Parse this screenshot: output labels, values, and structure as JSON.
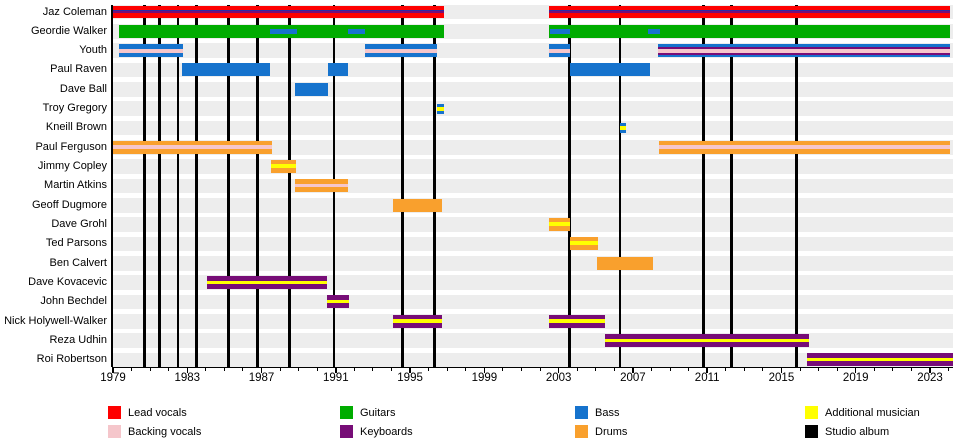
{
  "chart_data": {
    "type": "timeline",
    "description": "Band membership timeline with studio album markers",
    "x_axis": {
      "start": 1979,
      "end": 2024,
      "minor_tick_interval": 1,
      "major_labels": [
        "1979",
        "1983",
        "1987",
        "1991",
        "1995",
        "1999",
        "2003",
        "2007",
        "2011",
        "2015",
        "2019",
        "2023"
      ]
    },
    "colors": {
      "lead_vocals": "#fe0000",
      "backing_vocals": "#f5c6cb",
      "guitars": "#00ac00",
      "keyboards": "#770d77",
      "bass": "#1673cd",
      "drums": "#f9a02d",
      "additional_musician": "#ffff00",
      "studio_album": "#000000",
      "stripe_navy": "#2a2aa8"
    },
    "album_release_years": [
      1980.7,
      1981.5,
      1982.5,
      1983.5,
      1985.2,
      1986.8,
      1988.5,
      1990.9,
      1994.6,
      1996.3,
      2003.6,
      2006.3,
      2010.8,
      2012.3,
      2015.8
    ],
    "members": [
      {
        "name": "Jaz Coleman",
        "segments": [
          {
            "from": 1979.0,
            "to": 1996.85,
            "stripes": [
              [
                "lead_vocals",
                4.5
              ],
              [
                "stripe_navy",
                1.3
              ],
              [
                "keyboards",
                2.2
              ],
              [
                "lead_vocals",
                5
              ]
            ]
          },
          {
            "from": 2002.5,
            "to": 2024.1,
            "stripes": [
              [
                "lead_vocals",
                4.5
              ],
              [
                "stripe_navy",
                1.3
              ],
              [
                "keyboards",
                2.2
              ],
              [
                "lead_vocals",
                5
              ]
            ]
          }
        ]
      },
      {
        "name": "Geordie Walker",
        "segments": [
          {
            "from": 1979.3,
            "to": 1996.85,
            "stripes": [
              [
                "guitars",
                13
              ]
            ]
          },
          {
            "from": 2002.5,
            "to": 2024.1,
            "stripes": [
              [
                "guitars",
                13
              ]
            ]
          },
          {
            "from": 1987.45,
            "to": 1988.9,
            "h": 5,
            "stripes": [
              [
                "bass",
                5
              ]
            ]
          },
          {
            "from": 1991.65,
            "to": 1992.55,
            "h": 5,
            "stripes": [
              [
                "bass",
                5
              ]
            ]
          },
          {
            "from": 2002.55,
            "to": 2003.6,
            "h": 5,
            "stripes": [
              [
                "bass",
                5
              ]
            ]
          },
          {
            "from": 2007.8,
            "to": 2008.45,
            "h": 5,
            "stripes": [
              [
                "bass",
                5
              ]
            ]
          }
        ]
      },
      {
        "name": "Youth",
        "segments": [
          {
            "from": 1979.35,
            "to": 1982.77,
            "stripes": [
              [
                "bass",
                4.5
              ],
              [
                "backing_vocals",
                4
              ],
              [
                "bass",
                4.5
              ]
            ]
          },
          {
            "from": 1992.55,
            "to": 1996.45,
            "stripes": [
              [
                "bass",
                4.5
              ],
              [
                "backing_vocals",
                4
              ],
              [
                "bass",
                4.5
              ]
            ]
          },
          {
            "from": 2002.5,
            "to": 2003.6,
            "stripes": [
              [
                "bass",
                4.5
              ],
              [
                "backing_vocals",
                4
              ],
              [
                "bass",
                4.5
              ]
            ]
          },
          {
            "from": 2008.35,
            "to": 2024.1,
            "stripes": [
              [
                "bass",
                2.5
              ],
              [
                "keyboards",
                2
              ],
              [
                "backing_vocals",
                4
              ],
              [
                "keyboards",
                2
              ],
              [
                "bass",
                2.5
              ]
            ]
          }
        ]
      },
      {
        "name": "Paul Raven",
        "segments": [
          {
            "from": 1982.7,
            "to": 1987.45,
            "stripes": [
              [
                "bass",
                13
              ]
            ]
          },
          {
            "from": 1990.6,
            "to": 1991.65,
            "stripes": [
              [
                "bass",
                13
              ]
            ]
          },
          {
            "from": 2003.6,
            "to": 2007.9,
            "stripes": [
              [
                "bass",
                13
              ]
            ]
          }
        ]
      },
      {
        "name": "Dave Ball",
        "segments": [
          {
            "from": 1988.8,
            "to": 1990.6,
            "stripes": [
              [
                "bass",
                13
              ]
            ]
          }
        ]
      },
      {
        "name": "Troy Gregory",
        "segments": [
          {
            "from": 1996.45,
            "to": 1996.85,
            "h": 10,
            "stripes": [
              [
                "bass",
                3
              ],
              [
                "additional_musician",
                4
              ],
              [
                "bass",
                3
              ]
            ]
          }
        ]
      },
      {
        "name": "Kneill Brown",
        "segments": [
          {
            "from": 2006.3,
            "to": 2006.65,
            "h": 10,
            "stripes": [
              [
                "bass",
                3
              ],
              [
                "additional_musician",
                4
              ],
              [
                "bass",
                3
              ]
            ]
          }
        ]
      },
      {
        "name": "Paul Ferguson",
        "segments": [
          {
            "from": 1979.0,
            "to": 1987.55,
            "stripes": [
              [
                "drums",
                4.5
              ],
              [
                "backing_vocals",
                3.5
              ],
              [
                "drums",
                5
              ]
            ]
          },
          {
            "from": 2008.4,
            "to": 2024.1,
            "stripes": [
              [
                "drums",
                4.5
              ],
              [
                "backing_vocals",
                3.5
              ],
              [
                "drums",
                5
              ]
            ]
          }
        ]
      },
      {
        "name": "Jimmy Copley",
        "segments": [
          {
            "from": 1987.5,
            "to": 1988.85,
            "stripes": [
              [
                "drums",
                4
              ],
              [
                "additional_musician",
                4
              ],
              [
                "drums",
                5
              ]
            ]
          }
        ]
      },
      {
        "name": "Martin Atkins",
        "segments": [
          {
            "from": 1988.8,
            "to": 1991.65,
            "stripes": [
              [
                "drums",
                4.5
              ],
              [
                "backing_vocals",
                3.5
              ],
              [
                "drums",
                5
              ]
            ]
          }
        ]
      },
      {
        "name": "Geoff Dugmore",
        "segments": [
          {
            "from": 1994.1,
            "to": 1996.7,
            "stripes": [
              [
                "drums",
                13
              ]
            ]
          }
        ]
      },
      {
        "name": "Dave Grohl",
        "segments": [
          {
            "from": 2002.5,
            "to": 2003.6,
            "stripes": [
              [
                "drums",
                4
              ],
              [
                "additional_musician",
                4
              ],
              [
                "drums",
                5
              ]
            ]
          }
        ]
      },
      {
        "name": "Ted Parsons",
        "segments": [
          {
            "from": 2003.6,
            "to": 2005.1,
            "stripes": [
              [
                "drums",
                4
              ],
              [
                "additional_musician",
                4
              ],
              [
                "drums",
                5
              ]
            ]
          }
        ]
      },
      {
        "name": "Ben Calvert",
        "segments": [
          {
            "from": 2005.05,
            "to": 2008.1,
            "stripes": [
              [
                "drums",
                13
              ]
            ]
          }
        ]
      },
      {
        "name": "Dave Kovacevic",
        "segments": [
          {
            "from": 1984.05,
            "to": 1990.5,
            "stripes": [
              [
                "keyboards",
                4.5
              ],
              [
                "additional_musician",
                3.5
              ],
              [
                "keyboards",
                5
              ]
            ]
          }
        ]
      },
      {
        "name": "John Bechdel",
        "segments": [
          {
            "from": 1990.5,
            "to": 1991.7,
            "stripes": [
              [
                "keyboards",
                4.5
              ],
              [
                "additional_musician",
                3.5
              ],
              [
                "keyboards",
                5
              ]
            ]
          }
        ]
      },
      {
        "name": "Nick Holywell-Walker",
        "segments": [
          {
            "from": 1994.1,
            "to": 1996.7,
            "stripes": [
              [
                "keyboards",
                4.5
              ],
              [
                "additional_musician",
                3.5
              ],
              [
                "keyboards",
                5
              ]
            ]
          },
          {
            "from": 2002.5,
            "to": 2005.5,
            "stripes": [
              [
                "keyboards",
                4.5
              ],
              [
                "additional_musician",
                3.5
              ],
              [
                "keyboards",
                5
              ]
            ]
          }
        ]
      },
      {
        "name": "Reza Udhin",
        "segments": [
          {
            "from": 2005.5,
            "to": 2016.5,
            "stripes": [
              [
                "keyboards",
                4.5
              ],
              [
                "additional_musician",
                3.5
              ],
              [
                "keyboards",
                5
              ]
            ]
          }
        ]
      },
      {
        "name": "Roi Robertson",
        "segments": [
          {
            "from": 2016.4,
            "to": 2024.25,
            "stripes": [
              [
                "keyboards",
                4.5
              ],
              [
                "additional_musician",
                3.5
              ],
              [
                "keyboards",
                5
              ]
            ]
          }
        ]
      }
    ],
    "legend": [
      {
        "label": "Lead vocals",
        "color": "lead_vocals"
      },
      {
        "label": "Backing vocals",
        "color": "backing_vocals"
      },
      {
        "label": "Guitars",
        "color": "guitars"
      },
      {
        "label": "Keyboards",
        "color": "keyboards"
      },
      {
        "label": "Bass",
        "color": "bass"
      },
      {
        "label": "Drums",
        "color": "drums"
      },
      {
        "label": "Additional musician",
        "color": "additional_musician"
      },
      {
        "label": "Studio album",
        "color": "studio_album"
      }
    ]
  }
}
